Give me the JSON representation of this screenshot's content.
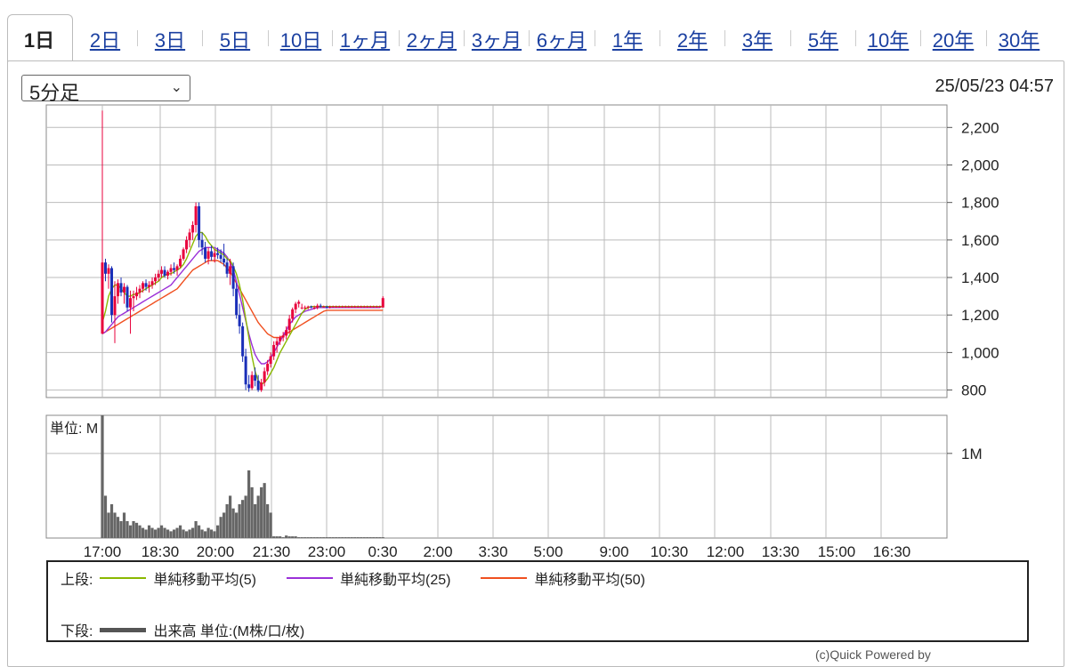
{
  "tabs": [
    {
      "label": "1日",
      "active": true
    },
    {
      "label": "2日"
    },
    {
      "label": "3日"
    },
    {
      "label": "5日"
    },
    {
      "label": "10日"
    },
    {
      "label": "1ヶ月"
    },
    {
      "label": "2ヶ月"
    },
    {
      "label": "3ヶ月"
    },
    {
      "label": "6ヶ月"
    },
    {
      "label": "1年"
    },
    {
      "label": "2年"
    },
    {
      "label": "3年"
    },
    {
      "label": "5年"
    },
    {
      "label": "10年"
    },
    {
      "label": "20年"
    },
    {
      "label": "30年"
    }
  ],
  "interval_select": {
    "value": "5分足"
  },
  "timestamp": "25/05/23 04:57",
  "colors": {
    "up": "#e8003c",
    "down": "#1a2fb8",
    "ma5": "#8ab800",
    "ma25": "#9b30d8",
    "ma50": "#f05020",
    "volume": "#666666",
    "grid": "#bbbbbb"
  },
  "chart_data": [
    {
      "type": "candlestick",
      "x_tick_labels": [
        "17:00",
        "18:30",
        "20:00",
        "21:30",
        "23:00",
        "0:30",
        "2:00",
        "3:30",
        "5:00",
        "9:00",
        "10:30",
        "12:00",
        "13:30",
        "15:00",
        "16:30"
      ],
      "y_ticks": [
        800,
        1000,
        1200,
        1400,
        1600,
        1800,
        2000,
        2200
      ],
      "y_tick_labels": [
        "800",
        "1,000",
        "1,200",
        "1,400",
        "1,600",
        "1,800",
        "2,000",
        "2,200"
      ],
      "ylim": [
        760,
        2320
      ],
      "x_step_minutes": 5,
      "candles": [
        [
          1100,
          2290,
          1100,
          1480
        ],
        [
          1480,
          1500,
          1380,
          1420
        ],
        [
          1420,
          1470,
          1340,
          1450
        ],
        [
          1450,
          1460,
          1160,
          1200
        ],
        [
          1200,
          1380,
          1050,
          1300
        ],
        [
          1300,
          1390,
          1260,
          1370
        ],
        [
          1370,
          1400,
          1300,
          1320
        ],
        [
          1320,
          1370,
          1260,
          1350
        ],
        [
          1350,
          1360,
          1220,
          1240
        ],
        [
          1240,
          1330,
          1100,
          1290
        ],
        [
          1290,
          1330,
          1220,
          1300
        ],
        [
          1300,
          1350,
          1280,
          1320
        ],
        [
          1320,
          1360,
          1290,
          1340
        ],
        [
          1340,
          1380,
          1320,
          1370
        ],
        [
          1370,
          1390,
          1330,
          1350
        ],
        [
          1350,
          1380,
          1320,
          1360
        ],
        [
          1360,
          1400,
          1340,
          1380
        ],
        [
          1380,
          1420,
          1360,
          1400
        ],
        [
          1400,
          1440,
          1380,
          1420
        ],
        [
          1420,
          1460,
          1400,
          1440
        ],
        [
          1440,
          1460,
          1400,
          1410
        ],
        [
          1410,
          1440,
          1390,
          1430
        ],
        [
          1430,
          1470,
          1410,
          1450
        ],
        [
          1450,
          1480,
          1420,
          1440
        ],
        [
          1440,
          1470,
          1410,
          1460
        ],
        [
          1460,
          1520,
          1450,
          1500
        ],
        [
          1500,
          1560,
          1490,
          1550
        ],
        [
          1550,
          1620,
          1530,
          1600
        ],
        [
          1600,
          1660,
          1560,
          1640
        ],
        [
          1640,
          1700,
          1600,
          1680
        ],
        [
          1680,
          1800,
          1640,
          1780
        ],
        [
          1780,
          1800,
          1560,
          1600
        ],
        [
          1600,
          1640,
          1520,
          1560
        ],
        [
          1560,
          1590,
          1480,
          1500
        ],
        [
          1500,
          1560,
          1470,
          1540
        ],
        [
          1540,
          1570,
          1490,
          1510
        ],
        [
          1510,
          1550,
          1480,
          1530
        ],
        [
          1530,
          1560,
          1500,
          1520
        ],
        [
          1520,
          1550,
          1480,
          1500
        ],
        [
          1500,
          1580,
          1460,
          1480
        ],
        [
          1480,
          1500,
          1400,
          1420
        ],
        [
          1420,
          1500,
          1360,
          1460
        ],
        [
          1460,
          1480,
          1300,
          1340
        ],
        [
          1340,
          1370,
          1180,
          1200
        ],
        [
          1200,
          1260,
          1100,
          1140
        ],
        [
          1140,
          1160,
          950,
          980
        ],
        [
          980,
          1020,
          800,
          830
        ],
        [
          830,
          880,
          790,
          810
        ],
        [
          810,
          900,
          800,
          880
        ],
        [
          880,
          920,
          820,
          850
        ],
        [
          850,
          880,
          790,
          800
        ],
        [
          800,
          860,
          790,
          840
        ],
        [
          840,
          920,
          820,
          900
        ],
        [
          900,
          960,
          880,
          940
        ],
        [
          940,
          1000,
          920,
          980
        ],
        [
          980,
          1060,
          960,
          1040
        ],
        [
          1040,
          1080,
          1000,
          1060
        ],
        [
          1060,
          1090,
          1040,
          1080
        ],
        [
          1080,
          1110,
          1060,
          1090
        ],
        [
          1090,
          1140,
          1070,
          1120
        ],
        [
          1120,
          1200,
          1100,
          1180
        ],
        [
          1180,
          1240,
          1160,
          1230
        ],
        [
          1230,
          1270,
          1210,
          1260
        ],
        [
          1260,
          1280,
          1240,
          1270
        ],
        [
          1240,
          1260,
          1230,
          1240
        ],
        [
          1240,
          1250,
          1230,
          1240
        ],
        [
          1240,
          1250,
          1230,
          1245
        ],
        [
          1245,
          1250,
          1235,
          1240
        ],
        [
          1240,
          1250,
          1230,
          1240
        ],
        [
          1240,
          1260,
          1230,
          1250
        ],
        [
          1250,
          1260,
          1240,
          1245
        ],
        [
          1245,
          1250,
          1240,
          1245
        ],
        [
          1245,
          1250,
          1235,
          1240
        ],
        [
          1240,
          1250,
          1235,
          1245
        ],
        [
          1245,
          1250,
          1240,
          1245
        ],
        [
          1245,
          1250,
          1240,
          1245
        ],
        [
          1245,
          1250,
          1240,
          1245
        ],
        [
          1245,
          1250,
          1240,
          1245
        ],
        [
          1245,
          1250,
          1240,
          1245
        ],
        [
          1245,
          1250,
          1240,
          1245
        ],
        [
          1245,
          1250,
          1240,
          1245
        ],
        [
          1245,
          1250,
          1240,
          1245
        ],
        [
          1245,
          1250,
          1240,
          1245
        ],
        [
          1245,
          1250,
          1240,
          1245
        ],
        [
          1245,
          1250,
          1240,
          1245
        ],
        [
          1245,
          1250,
          1240,
          1245
        ],
        [
          1245,
          1250,
          1240,
          1245
        ],
        [
          1245,
          1250,
          1240,
          1245
        ],
        [
          1245,
          1250,
          1240,
          1245
        ],
        [
          1245,
          1250,
          1240,
          1245
        ],
        [
          1240,
          1300,
          1240,
          1290
        ]
      ],
      "ma5": [
        1160,
        1220,
        1300,
        1340,
        1360,
        1360,
        1340,
        1320,
        1300,
        1300,
        1310,
        1310,
        1320,
        1330,
        1340,
        1350,
        1360,
        1370,
        1380,
        1400,
        1410,
        1420,
        1420,
        1430,
        1440,
        1450,
        1470,
        1500,
        1540,
        1580,
        1620,
        1640,
        1640,
        1620,
        1590,
        1570,
        1550,
        1540,
        1530,
        1520,
        1500,
        1490,
        1460,
        1420,
        1360,
        1280,
        1180,
        1080,
        980,
        900,
        850,
        830,
        840,
        860,
        890,
        920,
        960,
        1000,
        1030,
        1060,
        1090,
        1120,
        1150,
        1180,
        1210,
        1230,
        1240,
        1245,
        1245,
        1245,
        1245,
        1245,
        1245,
        1245,
        1245,
        1245,
        1245,
        1245,
        1245,
        1245,
        1245,
        1245,
        1245,
        1245,
        1245,
        1245,
        1245,
        1245,
        1245,
        1245,
        1245
      ],
      "ma25": [
        1100,
        1110,
        1130,
        1150,
        1170,
        1190,
        1200,
        1210,
        1220,
        1230,
        1240,
        1250,
        1260,
        1270,
        1280,
        1290,
        1300,
        1310,
        1320,
        1330,
        1340,
        1350,
        1360,
        1380,
        1400,
        1420,
        1440,
        1460,
        1480,
        1500,
        1520,
        1540,
        1550,
        1560,
        1560,
        1560,
        1560,
        1550,
        1540,
        1530,
        1510,
        1480,
        1440,
        1380,
        1310,
        1240,
        1170,
        1100,
        1040,
        990,
        960,
        940,
        940,
        950,
        970,
        1000,
        1030,
        1060,
        1090,
        1120,
        1150,
        1170,
        1190,
        1200,
        1210,
        1220,
        1225,
        1230,
        1235,
        1240,
        1240,
        1240,
        1240,
        1240,
        1240,
        1240,
        1240,
        1240,
        1240,
        1240,
        1240,
        1240,
        1240,
        1240,
        1240,
        1240,
        1240,
        1240,
        1240,
        1240,
        1250
      ],
      "ma50": [
        1100,
        1110,
        1120,
        1130,
        1140,
        1150,
        1160,
        1170,
        1180,
        1190,
        1200,
        1210,
        1220,
        1230,
        1240,
        1250,
        1260,
        1270,
        1280,
        1290,
        1300,
        1310,
        1320,
        1330,
        1340,
        1360,
        1380,
        1400,
        1420,
        1440,
        1450,
        1460,
        1470,
        1480,
        1490,
        1490,
        1490,
        1490,
        1480,
        1470,
        1450,
        1430,
        1400,
        1370,
        1340,
        1310,
        1280,
        1250,
        1220,
        1190,
        1160,
        1140,
        1120,
        1100,
        1090,
        1080,
        1080,
        1080,
        1090,
        1100,
        1110,
        1120,
        1130,
        1140,
        1150,
        1160,
        1170,
        1180,
        1190,
        1200,
        1210,
        1220,
        1225,
        1225,
        1225,
        1225,
        1225,
        1225,
        1225,
        1225,
        1225,
        1225,
        1225,
        1225,
        1225,
        1225,
        1225,
        1225,
        1225,
        1225,
        1225
      ]
    },
    {
      "type": "bar",
      "ylabel": "単位: M",
      "y_tick_labels": [
        "1M"
      ],
      "ylim": [
        0,
        1.45
      ],
      "volume": [
        1.45,
        0.5,
        0.3,
        0.4,
        0.3,
        0.25,
        0.2,
        0.3,
        0.2,
        0.15,
        0.2,
        0.18,
        0.15,
        0.12,
        0.1,
        0.15,
        0.12,
        0.1,
        0.12,
        0.15,
        0.12,
        0.1,
        0.08,
        0.1,
        0.12,
        0.15,
        0.1,
        0.08,
        0.1,
        0.12,
        0.2,
        0.15,
        0.1,
        0.08,
        0.12,
        0.1,
        0.08,
        0.15,
        0.25,
        0.3,
        0.4,
        0.5,
        0.35,
        0.3,
        0.4,
        0.45,
        0.5,
        0.8,
        0.6,
        0.4,
        0.5,
        0.6,
        0.65,
        0.4,
        0.3,
        0.02,
        0.02,
        0.02,
        0.01,
        0.03,
        0.02,
        0.02,
        0.02,
        0.01,
        0.01,
        0.01,
        0.01,
        0.01,
        0.01,
        0.01,
        0.01,
        0.01,
        0.01,
        0.01,
        0.01,
        0.01,
        0.01,
        0.01,
        0.01,
        0.01,
        0.01,
        0.01,
        0.01,
        0.01,
        0.01,
        0.01,
        0.01,
        0.01,
        0.01,
        0.01,
        0.01
      ]
    }
  ],
  "legend": {
    "upper_label": "上段:",
    "lower_label": "下段:",
    "ma5_label": "単純移動平均(5)",
    "ma25_label": "単純移動平均(25)",
    "ma50_label": "単純移動平均(50)",
    "volume_label": "出来高 単位:(M株/口/枚)"
  },
  "footer_note": "(c)Quick Powered by"
}
